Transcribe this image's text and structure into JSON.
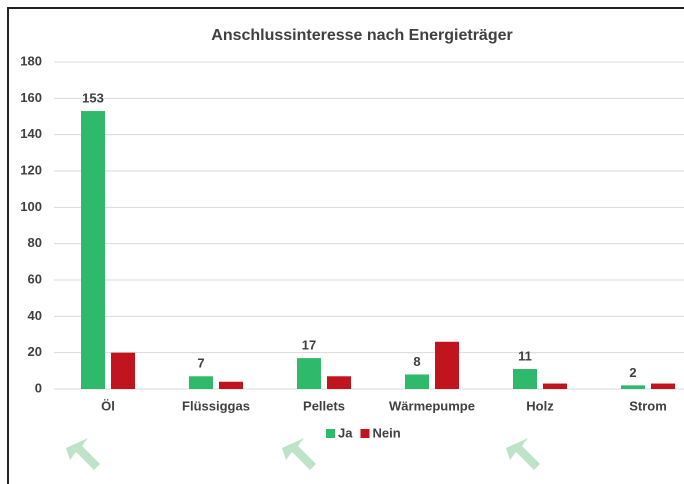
{
  "chart_data": {
    "type": "bar",
    "title": "Anschlussinteresse nach Energieträger",
    "categories": [
      "Öl",
      "Flüssiggas",
      "Pellets",
      "Wärmepumpe",
      "Holz",
      "Strom"
    ],
    "series": [
      {
        "name": "Ja",
        "color": "#2fb96b",
        "values": [
          153,
          7,
          17,
          8,
          11,
          2
        ],
        "labels": true
      },
      {
        "name": "Nein",
        "color": "#c0141f",
        "values": [
          20,
          4,
          7,
          26,
          3,
          3
        ],
        "labels": false
      }
    ],
    "ylim": [
      0,
      180
    ],
    "yticks": [
      0,
      20,
      40,
      60,
      80,
      100,
      120,
      140,
      160,
      180
    ],
    "grid": true,
    "legend": "bottom"
  }
}
